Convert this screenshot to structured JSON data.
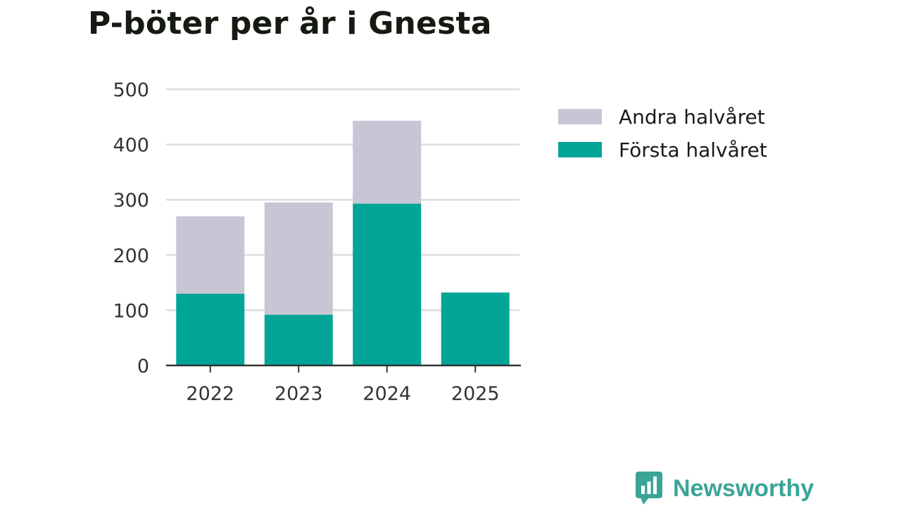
{
  "chart_data": {
    "type": "bar",
    "stacked": true,
    "title": "P-böter per år i Gnesta",
    "xlabel": "",
    "ylabel": "",
    "categories": [
      "2022",
      "2023",
      "2024",
      "2025"
    ],
    "series": [
      {
        "name": "Första halvåret",
        "color": "#00a598",
        "values": [
          130,
          92,
          293,
          132
        ]
      },
      {
        "name": "Andra halvåret",
        "color": "#c7c6d4",
        "values": [
          140,
          203,
          150,
          0
        ]
      }
    ],
    "ylim": [
      0,
      500
    ],
    "yticks": [
      "0",
      "100",
      "200",
      "300",
      "400",
      "500"
    ],
    "grid": true,
    "legend_position": "right",
    "legend_order": [
      "Andra halvåret",
      "Första halvåret"
    ]
  },
  "brand": {
    "name": "Newsworthy",
    "color": "#3aa597",
    "icon": "newsworthy-logo-icon"
  }
}
